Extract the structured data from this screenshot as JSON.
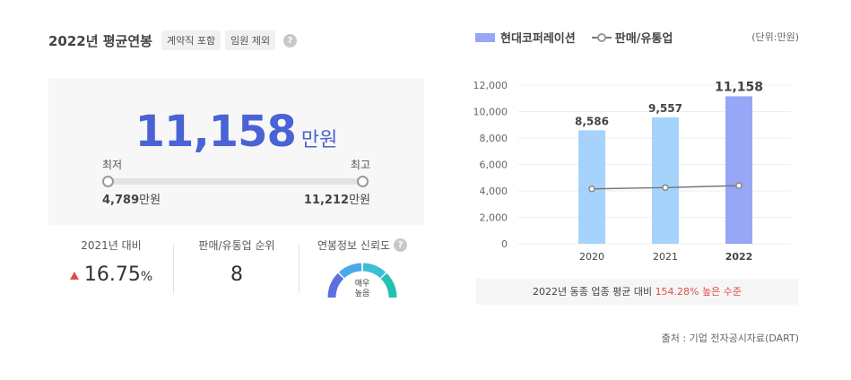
{
  "header": {
    "title": "2022년 평균연봉",
    "tags": [
      "계약직 포함",
      "임원 제외"
    ],
    "help": "?"
  },
  "salary": {
    "value": "11,158",
    "unit": "만원",
    "min_label": "최저",
    "max_label": "최고",
    "min_value": "4,789",
    "max_value": "11,212",
    "value_unit": "만원"
  },
  "stats": {
    "change_label": "2021년 대비",
    "change_value": "16.75",
    "change_unit": "%",
    "rank_label": "판매/유통업 순위",
    "rank_value": "8",
    "reliability_label": "연봉정보 신뢰도",
    "reliability_value_1": "매우",
    "reliability_value_2": "높음"
  },
  "legend": {
    "company": "현대코퍼레이션",
    "industry": "판매/유통업",
    "unit": "(단위:만원)"
  },
  "chart_data": {
    "type": "bar",
    "categories": [
      "2020",
      "2021",
      "2022"
    ],
    "series": [
      {
        "name": "현대코퍼레이션",
        "values": [
          8586,
          9557,
          11158
        ],
        "labels": [
          "8,586",
          "9,557",
          "11,158"
        ]
      },
      {
        "name": "판매/유통업",
        "values": [
          4150,
          4250,
          4400
        ]
      }
    ],
    "yticks": [
      "0",
      "2,000",
      "4,000",
      "6,000",
      "8,000",
      "10,000",
      "12,000"
    ],
    "ylim": [
      0,
      12000
    ],
    "colors": {
      "past": "#a6d3fb",
      "current": "#97a6f5",
      "line": "#777777"
    }
  },
  "note": {
    "prefix": "2022년 동종 업종 평균 대비",
    "highlight": "154.28% 높은 수준"
  },
  "source": "출처 : 기업 전자공시자료(DART)"
}
